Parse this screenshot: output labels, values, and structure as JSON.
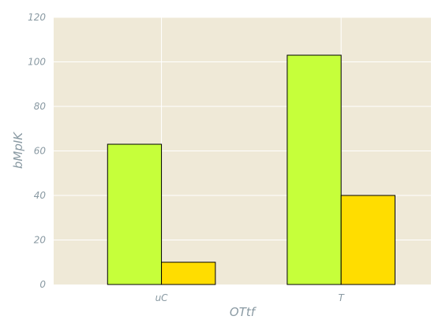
{
  "chart_data": {
    "type": "bar",
    "title": "",
    "xlabel": "OTtf",
    "ylabel": "bMpIK",
    "categories": [
      "uC",
      "T"
    ],
    "series": [
      {
        "values": [
          63,
          103
        ],
        "color": "#c6ff3a"
      },
      {
        "values": [
          10,
          40
        ],
        "color": "#ffdd00"
      }
    ],
    "ylim": [
      0,
      120
    ],
    "yticks": [
      0,
      20,
      40,
      60,
      80,
      100,
      120
    ],
    "grid": true,
    "background_color": "#efe9d7",
    "grid_color": "#ffffff",
    "bar_edge_color": "#000000",
    "text_color": "#8a9aa3"
  }
}
